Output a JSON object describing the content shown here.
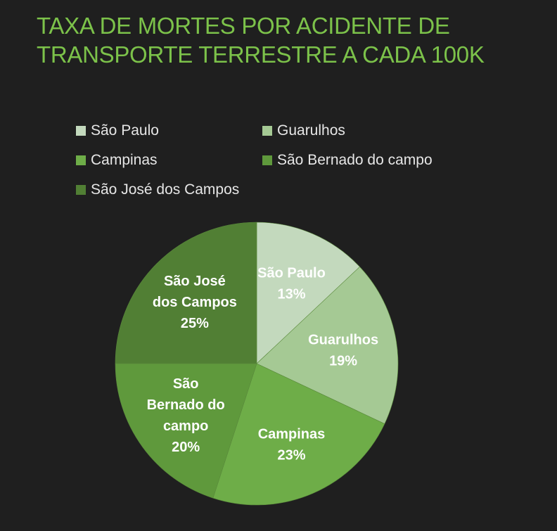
{
  "chart_data": {
    "type": "pie",
    "title_lines": [
      "TAXA DE MORTES POR ACIDENTE DE",
      "TRANSPORTE TERRESTRE A CADA 100K"
    ],
    "legend_position": "top",
    "slices": [
      {
        "name": "São Paulo",
        "value": 13,
        "percent_label": "13%",
        "label_lines": [
          "São Paulo"
        ],
        "color": "#c3d9bd"
      },
      {
        "name": "Guarulhos",
        "value": 19,
        "percent_label": "19%",
        "label_lines": [
          "Guarulhos"
        ],
        "color": "#a5c994"
      },
      {
        "name": "Campinas",
        "value": 23,
        "percent_label": "23%",
        "label_lines": [
          "Campinas"
        ],
        "color": "#6ead48"
      },
      {
        "name": "São Bernado do campo",
        "value": 20,
        "percent_label": "20%",
        "label_lines": [
          "São",
          "Bernado do",
          "campo"
        ],
        "color": "#5f993c"
      },
      {
        "name": "São José dos Campos",
        "value": 25,
        "percent_label": "25%",
        "label_lines": [
          "São José",
          "dos Campos"
        ],
        "color": "#517f34"
      }
    ]
  }
}
